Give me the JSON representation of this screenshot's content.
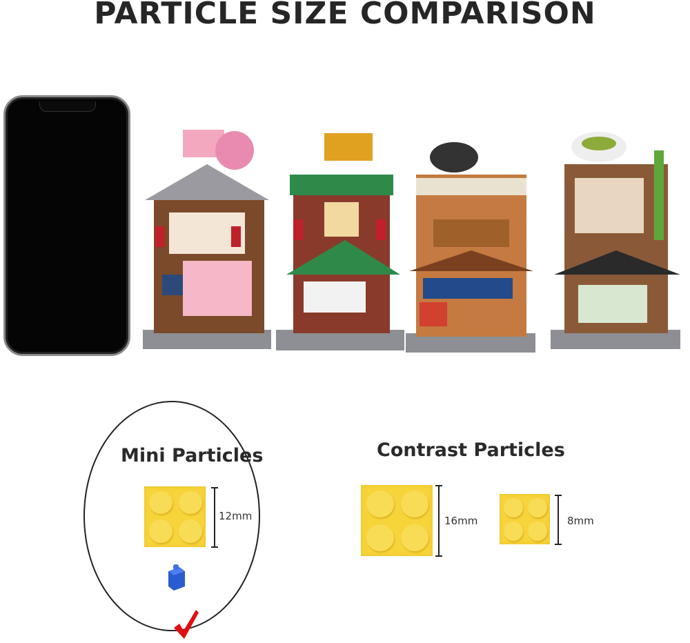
{
  "title": "PARTICLE SIZE COMPARISON",
  "mini": {
    "heading": "Mini Particles",
    "size": "12mm",
    "selected": true
  },
  "contrast": {
    "heading": "Contrast Particles",
    "large_size": "16mm",
    "small_size": "8mm"
  },
  "colors": {
    "brick": "#f7d43a",
    "mini_brick": "#2a5bd0",
    "check": "#e01010",
    "text": "#262626"
  },
  "icons": {
    "check": "checkmark-icon"
  }
}
